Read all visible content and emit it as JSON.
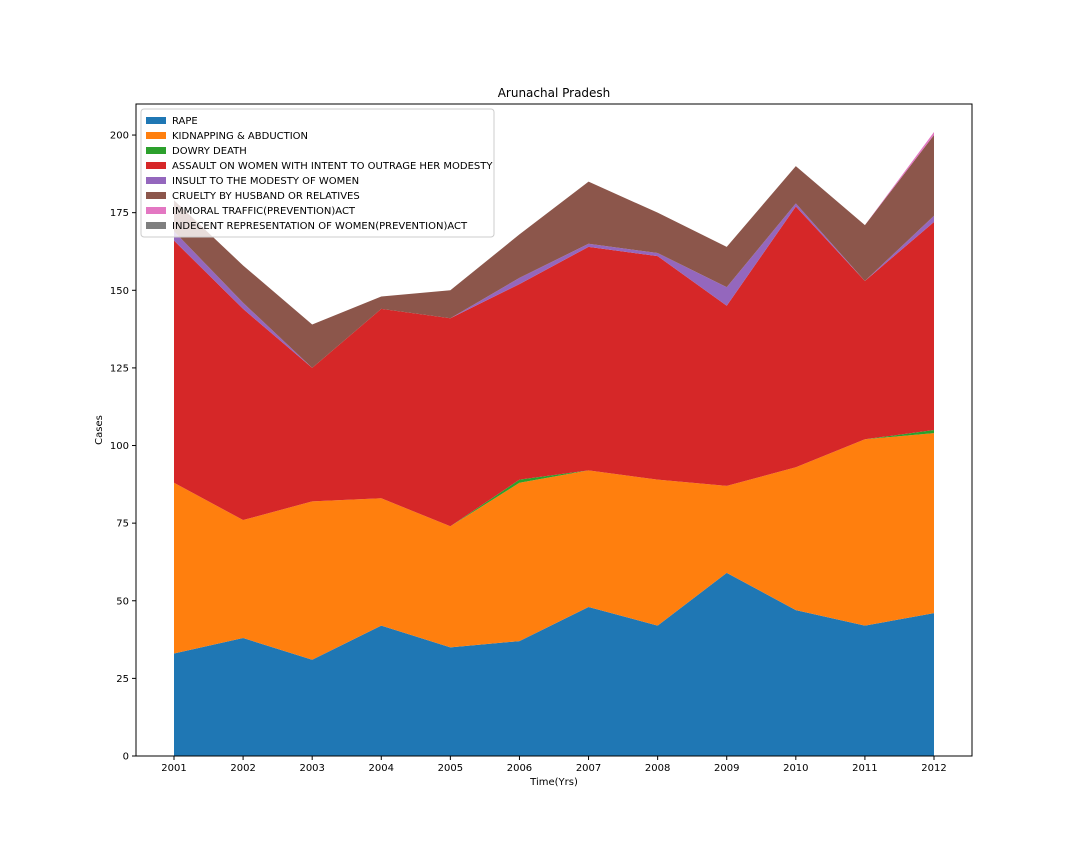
{
  "chart_data": {
    "type": "area",
    "stacked": true,
    "title": "Arunachal Pradesh",
    "xlabel": "Time(Yrs)",
    "ylabel": "Cases",
    "x": [
      2001,
      2002,
      2003,
      2004,
      2005,
      2006,
      2007,
      2008,
      2009,
      2010,
      2011,
      2012
    ],
    "xlim": [
      2000.45,
      2012.55
    ],
    "ylim": [
      0,
      210
    ],
    "yticks": [
      0,
      25,
      50,
      75,
      100,
      125,
      150,
      175,
      200
    ],
    "legend_position": "top-left",
    "series": [
      {
        "name": "RAPE",
        "color": "#1f77b4",
        "values": [
          33,
          38,
          31,
          42,
          35,
          37,
          48,
          42,
          59,
          47,
          42,
          46
        ]
      },
      {
        "name": "KIDNAPPING & ABDUCTION",
        "color": "#ff7f0e",
        "values": [
          55,
          38,
          51,
          41,
          39,
          51,
          44,
          47,
          28,
          46,
          60,
          58
        ]
      },
      {
        "name": "DOWRY DEATH",
        "color": "#2ca02c",
        "values": [
          0,
          0,
          0,
          0,
          0,
          1,
          0,
          0,
          0,
          0,
          0,
          1
        ]
      },
      {
        "name": "ASSAULT ON WOMEN WITH INTENT TO OUTRAGE HER MODESTY",
        "color": "#d62728",
        "values": [
          78,
          68,
          43,
          61,
          67,
          63,
          72,
          72,
          58,
          84,
          51,
          67
        ]
      },
      {
        "name": "INSULT TO THE MODESTY OF WOMEN",
        "color": "#9467bd",
        "values": [
          3,
          2,
          0,
          0,
          0,
          2,
          1,
          1,
          6,
          1,
          0,
          2
        ]
      },
      {
        "name": "CRUELTY BY HUSBAND OR RELATIVES",
        "color": "#8c564b",
        "values": [
          10,
          12,
          14,
          4,
          9,
          14,
          20,
          13,
          13,
          12,
          18,
          26
        ]
      },
      {
        "name": "IMMORAL TRAFFIC(PREVENTION)ACT",
        "color": "#e377c2",
        "values": [
          0,
          0,
          0,
          0,
          0,
          0,
          0,
          0,
          0,
          0,
          0,
          1
        ]
      },
      {
        "name": "INDECENT REPRESENTATION OF WOMEN(PREVENTION)ACT",
        "color": "#7f7f7f",
        "values": [
          0,
          0,
          0,
          0,
          0,
          0,
          0,
          0,
          0,
          0,
          0,
          0
        ]
      }
    ]
  }
}
